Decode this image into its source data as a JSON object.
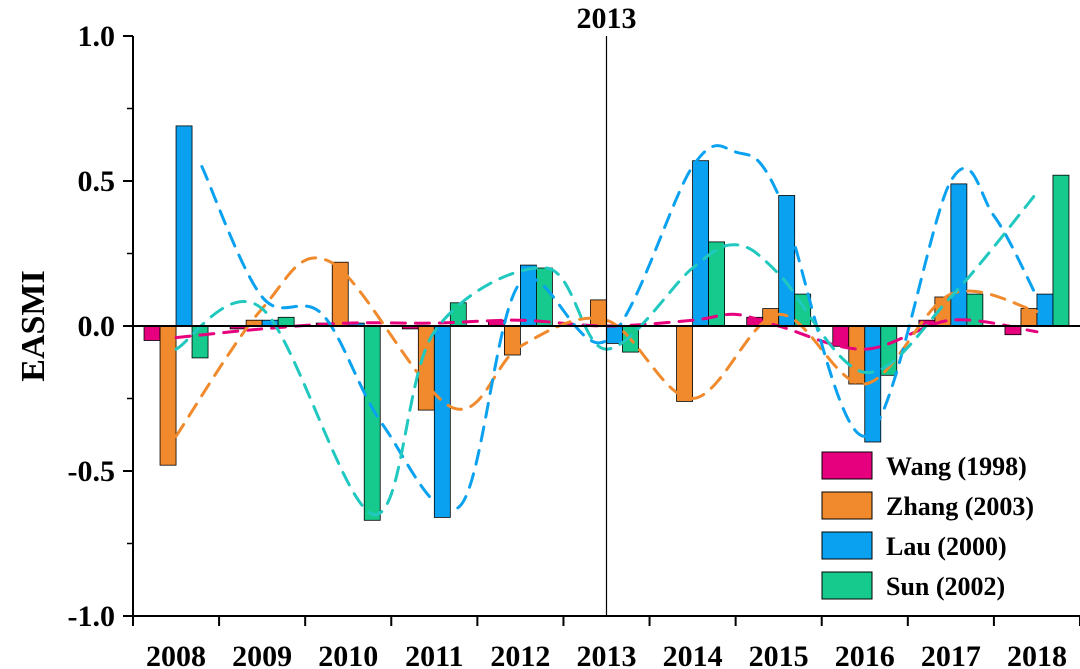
{
  "chart_data": {
    "type": "bar",
    "title": "",
    "xlabel": "",
    "ylabel": "EASMI",
    "ylim": [
      -1.0,
      1.0
    ],
    "yticks": [
      "-1.0",
      "-0.5",
      "0.0",
      "0.5",
      "1.0"
    ],
    "yticks_values": [
      -1.0,
      -0.5,
      0.0,
      0.5,
      1.0
    ],
    "categories": [
      "2008",
      "2009",
      "2010",
      "2011",
      "2012",
      "2013",
      "2014",
      "2015",
      "2016",
      "2017",
      "2018"
    ],
    "marker_line": {
      "x": "2013",
      "label": "2013"
    },
    "series": [
      {
        "name": "Wang (1998)",
        "color": "#e6007e",
        "values": [
          -0.05,
          -0.01,
          0.01,
          -0.01,
          0.02,
          0.0,
          0.0,
          0.03,
          -0.07,
          0.02,
          -0.03
        ]
      },
      {
        "name": "Zhang (2003)",
        "color": "#f08a2c",
        "values": [
          -0.48,
          0.02,
          0.22,
          -0.29,
          -0.1,
          0.09,
          -0.26,
          0.06,
          -0.2,
          0.1,
          0.06
        ]
      },
      {
        "name": "Lau (2000)",
        "color": "#0aa2f0",
        "values": [
          0.69,
          0.02,
          0.01,
          -0.66,
          0.21,
          -0.06,
          0.57,
          0.45,
          -0.4,
          0.49,
          0.11
        ]
      },
      {
        "name": "Sun (2002)",
        "color": "#16c98c",
        "values": [
          -0.11,
          0.03,
          -0.67,
          0.08,
          0.2,
          -0.09,
          0.29,
          0.11,
          -0.17,
          0.11,
          0.52
        ]
      }
    ],
    "trend_curves": [
      {
        "series": "Wang (1998)",
        "style": "dashed",
        "color": "#e6007e",
        "x": [
          2008.0,
          2009.0,
          2010.0,
          2011.0,
          2012.0,
          2013.0,
          2014.0,
          2014.5,
          2015.0,
          2016.0,
          2017.0,
          2018.0
        ],
        "y": [
          -0.04,
          -0.01,
          0.01,
          0.01,
          0.02,
          0.0,
          0.02,
          0.04,
          0.0,
          -0.08,
          0.02,
          -0.02
        ]
      },
      {
        "series": "Zhang (2003)",
        "style": "dashed",
        "color": "#f08a2c",
        "x": [
          2008.0,
          2009.0,
          2009.8,
          2011.2,
          2012.0,
          2013.0,
          2014.0,
          2015.0,
          2016.0,
          2017.0,
          2018.0
        ],
        "y": [
          -0.38,
          0.06,
          0.22,
          -0.28,
          -0.07,
          0.02,
          -0.25,
          0.04,
          -0.2,
          0.11,
          0.05
        ]
      },
      {
        "series": "Lau (2000)",
        "style": "dashed",
        "color": "#0aa2f0",
        "x": [
          2008.3,
          2009.0,
          2009.7,
          2010.4,
          2011.3,
          2012.0,
          2013.0,
          2014.0,
          2014.5,
          2015.0,
          2016.0,
          2017.0,
          2017.5,
          2018.0
        ],
        "y": [
          0.55,
          0.1,
          0.04,
          -0.34,
          -0.62,
          0.15,
          -0.05,
          0.55,
          0.6,
          0.45,
          -0.38,
          0.5,
          0.38,
          0.1
        ]
      },
      {
        "series": "Sun (2002)",
        "style": "dashed",
        "color": "#20c8c0",
        "x": [
          2008.0,
          2009.0,
          2010.3,
          2011.0,
          2012.3,
          2013.0,
          2014.0,
          2014.5,
          2015.0,
          2016.0,
          2017.0,
          2018.0
        ],
        "y": [
          -0.08,
          0.06,
          -0.65,
          -0.02,
          0.2,
          -0.08,
          0.2,
          0.28,
          0.18,
          -0.16,
          0.1,
          0.46
        ]
      }
    ],
    "legend": {
      "position": "bottom-right"
    },
    "grid": false
  }
}
